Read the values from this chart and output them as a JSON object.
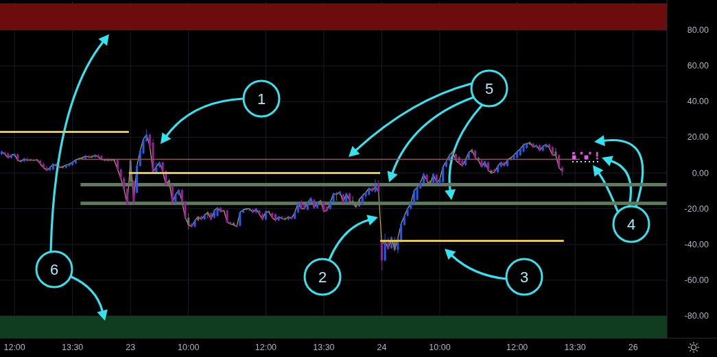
{
  "chart_data": {
    "type": "candlestick",
    "categories": [
      null,
      null,
      null,
      null,
      "12:00",
      null,
      null,
      null,
      null,
      null,
      null,
      null,
      null,
      null,
      null,
      null,
      null,
      null,
      null,
      null,
      null,
      null,
      "13:30",
      null,
      null,
      null,
      null,
      null,
      null,
      null,
      null,
      null,
      null,
      null,
      null,
      null,
      null,
      null,
      null,
      null,
      "23",
      null,
      null,
      null,
      null,
      null,
      null,
      null,
      null,
      null,
      null,
      null,
      null,
      null,
      null,
      null,
      null,
      null,
      "10:00",
      null,
      null,
      null,
      null,
      null,
      null,
      null,
      null,
      null,
      null,
      null,
      null,
      null,
      null,
      null,
      null,
      null,
      null,
      null,
      null,
      null,
      null,
      null,
      "12:00",
      null,
      null,
      null,
      null,
      null,
      null,
      null,
      null,
      null,
      null,
      null,
      null,
      null,
      null,
      null,
      null,
      null,
      "13:30",
      null,
      null,
      null,
      null,
      null,
      null,
      null,
      null,
      null,
      null,
      null,
      null,
      null,
      null,
      null,
      null,
      null,
      "24",
      null,
      null,
      null,
      null,
      null,
      null,
      null,
      null,
      null,
      null,
      null,
      null,
      null,
      null,
      null,
      null,
      null,
      "10:00",
      null,
      null,
      null,
      null,
      null,
      null,
      null,
      null,
      null,
      null,
      null,
      null,
      null,
      null,
      null,
      null,
      null,
      null,
      null,
      null,
      null,
      null,
      null,
      "12:00",
      null,
      null,
      null,
      null,
      null,
      null,
      null,
      null,
      null,
      null,
      null,
      null,
      null,
      null,
      null,
      null,
      null,
      "13:30",
      null,
      null,
      null,
      null,
      null,
      null,
      null,
      null,
      null,
      null,
      null,
      null,
      null,
      null,
      null,
      null,
      null,
      "26",
      null,
      null,
      null,
      null,
      null,
      null,
      null,
      null,
      null,
      null
    ],
    "ohlc": [
      [
        10.5,
        12.5,
        10,
        12
      ],
      [
        11.5,
        12,
        10,
        10.5
      ],
      [
        11,
        11.5,
        8,
        8.5
      ],
      [
        8.5,
        10.5,
        8,
        10
      ],
      [
        9.5,
        11,
        9,
        10.5
      ],
      [
        10.5,
        11,
        6.5,
        7
      ],
      [
        7,
        7.5,
        6,
        6.5
      ],
      [
        6.5,
        8.5,
        6,
        8
      ],
      [
        8,
        8.5,
        6.5,
        7
      ],
      [
        7,
        8,
        6.5,
        7.5
      ],
      [
        7.5,
        8,
        6.5,
        7
      ],
      [
        7,
        8,
        6.5,
        7.5
      ],
      [
        7,
        7.5,
        4.5,
        5
      ],
      [
        5,
        6,
        2.5,
        3
      ],
      [
        3,
        4,
        1,
        1.5
      ],
      [
        1.5,
        3.5,
        1,
        3
      ],
      [
        2,
        5.5,
        1.5,
        5
      ],
      [
        5,
        5.5,
        3.5,
        4
      ],
      [
        4,
        4.5,
        2.5,
        3
      ],
      [
        3,
        4,
        2.5,
        3.5
      ],
      [
        3,
        5,
        2.5,
        4.5
      ],
      [
        4,
        5.5,
        3.5,
        5
      ],
      [
        4.5,
        6.5,
        4,
        6
      ],
      [
        5.5,
        8,
        5,
        7.5
      ],
      [
        7.5,
        8.5,
        7,
        8
      ],
      [
        8,
        9,
        7.5,
        8.5
      ],
      [
        8,
        10,
        7.5,
        9.5
      ],
      [
        9.5,
        10,
        8.5,
        9
      ],
      [
        9,
        10,
        8.5,
        9
      ],
      [
        9,
        10.5,
        8.5,
        10
      ],
      [
        10,
        10.5,
        8.5,
        9
      ],
      [
        9.5,
        10,
        7,
        7.5
      ],
      [
        7,
        8,
        6.5,
        7.5
      ],
      [
        8,
        8.5,
        6.5,
        7
      ],
      [
        7,
        8,
        6.5,
        7.5
      ],
      [
        7.5,
        8,
        6.5,
        7
      ],
      [
        7.5,
        8,
        1.5,
        2
      ],
      [
        2,
        2.5,
        -3.5,
        -3
      ],
      [
        -3,
        -2,
        -9.5,
        -9
      ],
      [
        -9,
        -8.5,
        -18,
        -17.5
      ],
      [
        -5,
        7.5,
        -5.5,
        7
      ],
      [
        -4.5,
        -4,
        -17.5,
        -16
      ],
      [
        -11,
        4.5,
        -11.5,
        4
      ],
      [
        4,
        13,
        3.5,
        12.5
      ],
      [
        11,
        19.5,
        10.5,
        19
      ],
      [
        18,
        24.5,
        17.5,
        21.5
      ],
      [
        21.5,
        22,
        14.5,
        15
      ],
      [
        17,
        19,
        0,
        0.5
      ],
      [
        0.5,
        6,
        0,
        3.5
      ],
      [
        3.5,
        6.5,
        3,
        6
      ],
      [
        6,
        6.5,
        0.5,
        1
      ],
      [
        1,
        1.5,
        -7,
        -6.5
      ],
      [
        -6.5,
        -3.5,
        -8,
        -4
      ],
      [
        -7,
        -6.5,
        -17,
        -16.5
      ],
      [
        -16.5,
        -11.5,
        -17,
        -12
      ],
      [
        -12,
        -9,
        -12.5,
        -9.5
      ],
      [
        -9.5,
        -9,
        -16.5,
        -16
      ],
      [
        -16,
        -15.5,
        -25.5,
        -25
      ],
      [
        -25,
        -22.5,
        -31.5,
        -29
      ],
      [
        -28.5,
        -28,
        -30.5,
        -30
      ],
      [
        -30,
        -26,
        -30.5,
        -26.5
      ],
      [
        -26.5,
        -24,
        -27,
        -24.5
      ],
      [
        -24.5,
        -24,
        -26.5,
        -26
      ],
      [
        -26,
        -23,
        -26.5,
        -23.5
      ],
      [
        -23.5,
        -21.5,
        -25.5,
        -22
      ],
      [
        -22.5,
        -22,
        -26.5,
        -26
      ],
      [
        -25,
        -20.5,
        -25.5,
        -21
      ],
      [
        -24,
        -19,
        -24.5,
        -19.5
      ],
      [
        -19.5,
        -19,
        -22,
        -21.5
      ],
      [
        -21.5,
        -20.5,
        -22,
        -21
      ],
      [
        -21,
        -20.5,
        -28,
        -27.5
      ],
      [
        -27.5,
        -27,
        -29,
        -28.5
      ],
      [
        -28,
        -27.5,
        -29.5,
        -29
      ],
      [
        -29,
        -28.5,
        -30.5,
        -30
      ],
      [
        -29.5,
        -21.5,
        -30,
        -22
      ],
      [
        -22,
        -20,
        -22.5,
        -20.5
      ],
      [
        -20.5,
        -19.5,
        -21,
        -20
      ],
      [
        -21,
        -19.5,
        -21.5,
        -20
      ],
      [
        -20.5,
        -20,
        -22.5,
        -22
      ],
      [
        -22,
        -19.5,
        -23,
        -20
      ],
      [
        -21,
        -20.5,
        -23.5,
        -23
      ],
      [
        -23,
        -22.5,
        -26.5,
        -26
      ],
      [
        -26,
        -21,
        -26.5,
        -21.5
      ],
      [
        -21.5,
        -21,
        -22.5,
        -22
      ],
      [
        -22.5,
        -22,
        -25.5,
        -25
      ],
      [
        -23,
        -22.5,
        -27,
        -26.5
      ],
      [
        -26.5,
        -24,
        -27,
        -24.5
      ],
      [
        -24.5,
        -24,
        -26,
        -25.5
      ],
      [
        -25.5,
        -24.5,
        -26.5,
        -26
      ],
      [
        -26,
        -24,
        -26.5,
        -24.5
      ],
      [
        -24.5,
        -24,
        -26,
        -25.5
      ],
      [
        -25.5,
        -21.5,
        -26,
        -22
      ],
      [
        -22,
        -16.5,
        -22.5,
        -17
      ],
      [
        -16,
        -15,
        -20.5,
        -20
      ],
      [
        -18,
        -17.5,
        -20.5,
        -20
      ],
      [
        -20.5,
        -16,
        -21,
        -16.5
      ],
      [
        -16.5,
        -13.5,
        -17,
        -14
      ],
      [
        -15,
        -14.5,
        -20,
        -19.5
      ],
      [
        -19.5,
        -16,
        -20,
        -16.5
      ],
      [
        -16.5,
        -15,
        -17,
        -15.5
      ],
      [
        -16,
        -15.5,
        -22,
        -21.5
      ],
      [
        -19,
        -18.5,
        -21.5,
        -21
      ],
      [
        -20,
        -16,
        -20.5,
        -16.5
      ],
      [
        -16.5,
        -11,
        -17,
        -11.5
      ],
      [
        -11.5,
        -10.5,
        -15.5,
        -12
      ],
      [
        -12,
        -10,
        -12.5,
        -10.5
      ],
      [
        -12,
        -11.5,
        -17,
        -16.5
      ],
      [
        -16.5,
        -11,
        -17,
        -11.5
      ],
      [
        -11.5,
        -11,
        -16,
        -15.5
      ],
      [
        -15.5,
        -13,
        -18,
        -17
      ],
      [
        -17,
        -16.5,
        -19.5,
        -19
      ],
      [
        -18.5,
        -14.5,
        -19,
        -15
      ],
      [
        -17.5,
        -12,
        -18,
        -12.5
      ],
      [
        -13,
        -10.5,
        -14.5,
        -11
      ],
      [
        -12,
        -8,
        -12.5,
        -8.5
      ],
      [
        -8.5,
        -8,
        -10.5,
        -10
      ],
      [
        -10.5,
        -3.5,
        -11,
        -7.5
      ],
      [
        -5.5,
        -4,
        -11,
        -10.5
      ],
      [
        -38,
        -38,
        -54.5,
        -49
      ],
      [
        -49,
        -34,
        -49.5,
        -38
      ],
      [
        -38,
        -36,
        -43,
        -42.5
      ],
      [
        -42,
        -35.5,
        -42.5,
        -36
      ],
      [
        -38,
        -36,
        -44,
        -43
      ],
      [
        -43,
        -36,
        -45,
        -36.5
      ],
      [
        -38.5,
        -28,
        -39,
        -28.5
      ],
      [
        -29,
        -23.5,
        -29.5,
        -24
      ],
      [
        -24,
        -19.5,
        -24.5,
        -20
      ],
      [
        -20,
        -16.5,
        -20.5,
        -17
      ],
      [
        -17,
        -9.5,
        -17.5,
        -10
      ],
      [
        -15,
        -7.5,
        -15.5,
        -8
      ],
      [
        -8.5,
        -4,
        -9,
        -5.5
      ],
      [
        -5.5,
        0,
        -6,
        -0.5
      ],
      [
        -1,
        -0.5,
        -5,
        -4.5
      ],
      [
        -4.5,
        -4,
        -7,
        -6.5
      ],
      [
        -5.5,
        0,
        -6,
        -0.5
      ],
      [
        -1,
        -0.5,
        -6,
        -5.5
      ],
      [
        -6,
        -3,
        -6.5,
        -3.5
      ],
      [
        -5,
        4,
        -5.5,
        3.5
      ],
      [
        3.5,
        7,
        3,
        6.5
      ],
      [
        7,
        10.5,
        6.5,
        10
      ],
      [
        10,
        12.5,
        8.5,
        12
      ],
      [
        10.5,
        11,
        6.5,
        7
      ],
      [
        9,
        9.5,
        5,
        5.5
      ],
      [
        7,
        7.5,
        3.5,
        4
      ],
      [
        4.5,
        8,
        4,
        7.5
      ],
      [
        8,
        12,
        7.5,
        11.5
      ],
      [
        11.5,
        13.5,
        11,
        13
      ],
      [
        12.5,
        13,
        8,
        8.5
      ],
      [
        8.5,
        9,
        6.5,
        7
      ],
      [
        7,
        7.5,
        3,
        3.5
      ],
      [
        3.5,
        7,
        3,
        6.5
      ],
      [
        6,
        6.5,
        1,
        1.5
      ],
      [
        1.5,
        2,
        -0.5,
        0
      ],
      [
        2,
        2.5,
        0,
        0.5
      ],
      [
        0.5,
        4.5,
        0,
        4
      ],
      [
        3.5,
        6.5,
        3,
        6
      ],
      [
        6,
        6.5,
        3.5,
        4
      ],
      [
        4,
        8,
        3.5,
        7.5
      ],
      [
        7.5,
        9,
        7,
        8.5
      ],
      [
        8,
        10.5,
        7.5,
        10
      ],
      [
        8.5,
        12.5,
        8,
        12
      ],
      [
        10,
        14,
        9.5,
        13.5
      ],
      [
        12,
        16.5,
        11.5,
        16
      ],
      [
        14,
        17,
        13.5,
        16.5
      ],
      [
        16,
        17.5,
        15.5,
        17
      ],
      [
        16.5,
        17,
        14,
        14.5
      ],
      [
        14.5,
        16,
        14,
        15.5
      ],
      [
        15.5,
        16,
        12,
        12.5
      ],
      [
        12.5,
        15.5,
        12,
        15
      ],
      [
        14.5,
        16.5,
        14,
        16
      ],
      [
        16,
        16.5,
        13.5,
        14
      ],
      [
        14.5,
        15,
        9.5,
        10
      ],
      [
        12,
        14,
        9.5,
        10
      ],
      [
        10,
        10.5,
        2.5,
        3
      ],
      [
        3,
        3.5,
        -1.5,
        1
      ],
      null,
      null,
      null,
      null,
      null,
      null,
      null,
      null,
      null,
      null,
      null,
      null,
      null,
      null,
      null,
      null,
      null,
      null,
      null,
      null,
      null,
      null,
      null,
      null,
      null,
      null,
      null,
      null,
      null,
      null,
      null,
      null
    ],
    "colors": [
      "#2159f5",
      "#9a1fa6",
      "#9a1fa6",
      "#2159f5",
      "#2159f5",
      "#9a1fa6",
      "#6f717a",
      "#2159f5",
      "#9a1fa6",
      "#6f717a",
      "#9a1fa6",
      "#6f717a",
      "#9a1fa6",
      "#9a1fa6",
      "#9a1fa6",
      "#2159f5",
      "#2159f5",
      "#6f717a",
      "#9a1fa6",
      "#6f717a",
      "#2159f5",
      "#2159f5",
      "#2159f5",
      "#2159f5",
      "#6f717a",
      "#6f717a",
      "#2159f5",
      "#9a1fa6",
      "#6f717a",
      "#2159f5",
      "#9a1fa6",
      "#9a1fa6",
      "#6f717a",
      "#9a1fa6",
      "#6f717a",
      "#6f717a",
      "#9a1fa6",
      "#9a1fa6",
      "#9a1fa6",
      "#9a1fa6",
      "#6f717a",
      "#9a1fa6",
      "#2159f5",
      "#2159f5",
      "#2159f5",
      "#2159f5",
      "#9a1fa6",
      "#9a1fa6",
      "#2159f5",
      "#2159f5",
      "#9a1fa6",
      "#9a1fa6",
      "#6f717a",
      "#9a1fa6",
      "#2159f5",
      "#2159f5",
      "#9a1fa6",
      "#9a1fa6",
      "#6f717a",
      "#9a1fa6",
      "#2159f5",
      "#6f717a",
      "#9a1fa6",
      "#2159f5",
      "#6f717a",
      "#9a1fa6",
      "#2159f5",
      "#2159f5",
      "#9a1fa6",
      "#6f717a",
      "#9a1fa6",
      "#9a1fa6",
      "#6f717a",
      "#9a1fa6",
      "#2159f5",
      "#2159f5",
      "#6f717a",
      "#2159f5",
      "#9a1fa6",
      "#2159f5",
      "#9a1fa6",
      "#9a1fa6",
      "#2159f5",
      "#6f717a",
      "#9a1fa6",
      "#9a1fa6",
      "#2159f5",
      "#9a1fa6",
      "#6f717a",
      "#2159f5",
      "#9a1fa6",
      "#2159f5",
      "#2159f5",
      "#9a1fa6",
      "#9a1fa6",
      "#2159f5",
      "#2159f5",
      "#9a1fa6",
      "#2159f5",
      "#6f717a",
      "#9a1fa6",
      "#9a1fa6",
      "#2159f5",
      "#2159f5",
      "#6f717a",
      "#2159f5",
      "#9a1fa6",
      "#2159f5",
      "#9a1fa6",
      "#6f717a",
      "#6f717a",
      "#6f717a",
      "#2159f5",
      "#2159f5",
      "#2159f5",
      "#9a1fa6",
      "#2159f5",
      "#9a1fa6",
      "#9a1fa6",
      "#2159f5",
      "#9a1fa6",
      "#2159f5",
      "#6f717a",
      "#2159f5",
      "#2159f5",
      "#2159f5",
      "#2159f5",
      "#2159f5",
      "#2159f5",
      "#2159f5",
      "#2159f5",
      "#2159f5",
      "#9a1fa6",
      "#6f717a",
      "#2159f5",
      "#9a1fa6",
      "#2159f5",
      "#2159f5",
      "#2159f5",
      "#2159f5",
      "#6f717a",
      "#9a1fa6",
      "#9a1fa6",
      "#9a1fa6",
      "#2159f5",
      "#2159f5",
      "#6f717a",
      "#9a1fa6",
      "#6f717a",
      "#9a1fa6",
      "#2159f5",
      "#9a1fa6",
      "#6f717a",
      "#9a1fa6",
      "#2159f5",
      "#2159f5",
      "#9a1fa6",
      "#2159f5",
      "#6f717a",
      "#2159f5",
      "#2159f5",
      "#2159f5",
      "#2159f5",
      "#2159f5",
      "#6f717a",
      "#9a1fa6",
      "#2159f5",
      "#9a1fa6",
      "#2159f5",
      "#2159f5",
      "#9a1fa6",
      "#9a1fa6",
      "#6f717a",
      "#9a1fa6",
      "#9a1fa6",
      null,
      null,
      null,
      null,
      null,
      null,
      null,
      null,
      null,
      null,
      null,
      null,
      null,
      null,
      null,
      null,
      null,
      null,
      null,
      null,
      null,
      null,
      null,
      null,
      null,
      null,
      null,
      null,
      null,
      null,
      null,
      null
    ],
    "series": [
      {
        "type": "line",
        "color": "#c9ae3a",
        "values": [
          12,
          10.5,
          8.5,
          10,
          10.5,
          7,
          6.5,
          8,
          7,
          7.5,
          7,
          7.5,
          5,
          3,
          1.5,
          3,
          5,
          4,
          3,
          3.5,
          4.5,
          5,
          6,
          7.5,
          8,
          8.5,
          9.5,
          9,
          9,
          10,
          9,
          7.5,
          7.5,
          7,
          7.5,
          7,
          2,
          -3,
          -9,
          -17.5,
          7,
          -16,
          4,
          12.5,
          19,
          21.5,
          15,
          0.5,
          3.5,
          6,
          1,
          -6.5,
          -4,
          -16.5,
          -12,
          -9.5,
          -16,
          -25,
          -29,
          -30,
          -26.5,
          -24.5,
          -26,
          -23.5,
          -22,
          -26,
          -21,
          -19.5,
          -21.5,
          -21,
          -27.5,
          -28.5,
          -29,
          -30,
          -22,
          -20.5,
          -20,
          -20,
          -22,
          -20,
          -23,
          -26,
          -21.5,
          -22,
          -25,
          -26.5,
          -24.5,
          -25.5,
          -26,
          -24.5,
          -25.5,
          -22,
          -17,
          -20,
          -20,
          -16.5,
          -14,
          -19.5,
          -16.5,
          -15.5,
          -21.5,
          -21,
          -16.5,
          -11.5,
          -12,
          -10.5,
          -16.5,
          -11.5,
          -15.5,
          -17,
          -19,
          -15,
          -12.5,
          -11,
          -8.5,
          -10,
          -7.5,
          -10.5,
          -40,
          -38,
          -42.5,
          -36,
          -43,
          -36.5,
          -28.5,
          -24,
          -20,
          -17,
          -10,
          -8,
          -5.5,
          -0.5,
          -4.5,
          -6.5,
          -0.5,
          -5.5,
          -3.5,
          3.5,
          6.5,
          10,
          12,
          7,
          5.5,
          4,
          7.5,
          11.5,
          13,
          8.5,
          7,
          3.5,
          6.5,
          1.5,
          0,
          0.5,
          4,
          6,
          4,
          7.5,
          8.5,
          10,
          12,
          13.5,
          16,
          16.5,
          17,
          14.5,
          15.5,
          12.5,
          15,
          16,
          14,
          10,
          10,
          3,
          1,
          null,
          null,
          null,
          null,
          null,
          null,
          null,
          null,
          null,
          null,
          null,
          null,
          null,
          null,
          null,
          null,
          null,
          null,
          null,
          null,
          null,
          null,
          null,
          null,
          null,
          null,
          null,
          null,
          null,
          null,
          null,
          null
        ]
      },
      {
        "type": "step",
        "color": "#e3c84a",
        "values": [
          23,
          23,
          23,
          23,
          23,
          23,
          23,
          23,
          23,
          23,
          23,
          23,
          23,
          23,
          23,
          23,
          23,
          23,
          23,
          23,
          23,
          23,
          23,
          23,
          23,
          23,
          23,
          23,
          23,
          23,
          23,
          23,
          23,
          23,
          23,
          23,
          23,
          23,
          23,
          23,
          0,
          0,
          0,
          0,
          0,
          0,
          0,
          0,
          0,
          0,
          0,
          0,
          0,
          0,
          0,
          0,
          0,
          0,
          0,
          0,
          0,
          0,
          0,
          0,
          0,
          0,
          0,
          0,
          0,
          0,
          0,
          0,
          0,
          0,
          0,
          0,
          0,
          0,
          0,
          0,
          0,
          0,
          0,
          0,
          0,
          0,
          0,
          0,
          0,
          0,
          0,
          0,
          0,
          0,
          0,
          0,
          0,
          0,
          0,
          0,
          0,
          0,
          0,
          0,
          0,
          0,
          0,
          0,
          0,
          0,
          0,
          0,
          0,
          0,
          0,
          0,
          0,
          0,
          -38,
          -38,
          -38,
          -38,
          -38,
          -38,
          -38,
          -38,
          -38,
          -38,
          -38,
          -38,
          -38,
          -38,
          -38,
          -38,
          -38,
          -38,
          -38,
          -38,
          -38,
          -38,
          -38,
          -38,
          -38,
          -38,
          -38,
          -38,
          -38,
          -38,
          -38,
          -38,
          -38,
          -38,
          -38,
          -38,
          -38,
          -38,
          -38,
          -38,
          -38,
          -38,
          -38,
          -38,
          -38,
          -38,
          -38,
          -38,
          -38,
          -38,
          -38,
          -38,
          -38,
          -38,
          -38,
          -38,
          -38,
          null,
          null,
          null,
          null,
          null,
          null,
          null,
          null,
          null,
          null,
          null,
          null,
          null,
          null,
          null,
          null,
          null,
          null,
          null,
          null,
          null,
          null,
          null,
          null,
          null,
          null,
          null,
          null,
          null,
          null,
          null,
          null
        ]
      },
      {
        "type": "step",
        "color": "#8f5a62",
        "values": [
          null,
          null,
          null,
          null,
          null,
          null,
          null,
          null,
          null,
          null,
          null,
          null,
          null,
          null,
          null,
          null,
          null,
          null,
          null,
          null,
          null,
          null,
          null,
          null,
          null,
          7.7,
          7.7,
          7.7,
          7.7,
          7.7,
          7.7,
          7.7,
          7.7,
          7.7,
          7.7,
          7.7,
          7.7,
          7.7,
          7.7,
          7.7,
          7.7,
          7.7,
          7.7,
          7.7,
          7.7,
          7.7,
          7.7,
          7.7,
          7.7,
          7.7,
          7.7,
          7.7,
          7.7,
          7.7,
          7.7,
          7.7,
          7.7,
          7.7,
          7.7,
          7.7,
          7.7,
          7.7,
          7.7,
          7.7,
          7.7,
          7.7,
          7.7,
          7.7,
          7.7,
          7.7,
          7.7,
          7.7,
          7.7,
          7.7,
          7.7,
          7.7,
          7.7,
          7.7,
          7.7,
          7.7,
          7.7,
          7.7,
          7.7,
          7.7,
          7.7,
          7.7,
          7.7,
          7.7,
          7.7,
          7.7,
          7.7,
          7.7,
          7.7,
          7.7,
          7.7,
          7.7,
          7.7,
          7.7,
          7.7,
          7.7,
          7.7,
          7.7,
          7.7,
          7.7,
          7.7,
          7.7,
          7.7,
          7.7,
          7.7,
          7.7,
          7.7,
          7.7,
          7.7,
          7.7,
          7.7,
          7.7,
          7.7,
          7.7,
          7.7,
          7.7,
          7.7,
          7.7,
          7.7,
          7.7,
          7.7,
          7.7,
          7.7,
          7.7,
          7.7,
          7.7,
          7.7,
          7.7,
          7.7,
          7.7,
          7.7,
          7.7,
          7.7,
          7.7,
          7.7,
          7.7,
          7.7,
          7.7,
          7.7,
          7.7,
          7.7,
          7.7,
          7.7,
          7.7,
          7.7,
          7.7,
          7.7,
          7.7,
          7.7,
          7.7,
          7.7,
          7.7,
          7.7,
          7.7,
          7.7,
          7.7,
          7.7,
          7.7,
          7.7,
          7.7,
          7.7,
          7.7,
          7.7,
          7.7,
          7.7,
          7.7,
          7.7,
          7.7,
          7.7,
          7.7,
          7.7,
          7.7,
          7.7,
          7.7,
          7.7,
          7.7,
          null,
          null,
          null,
          null,
          null,
          null,
          null,
          null,
          null,
          null,
          null,
          null,
          null,
          null,
          null,
          null,
          null,
          null,
          null,
          null,
          null,
          null,
          null,
          null,
          null,
          null,
          null
        ]
      },
      {
        "type": "step",
        "color": "#607a5e",
        "values": [
          null,
          null,
          null,
          null,
          null,
          null,
          null,
          null,
          null,
          null,
          null,
          null,
          null,
          null,
          null,
          null,
          null,
          null,
          null,
          null,
          null,
          null,
          null,
          null,
          null,
          -6.5,
          -6.5,
          -6.5,
          -6.5,
          -6.5,
          -6.5,
          -6.5,
          -6.5,
          -6.5,
          -6.5,
          -6.5,
          -6.5,
          -6.5,
          -6.5,
          -6.5,
          -6.5,
          -6.5,
          -6.5,
          -6.5,
          -6.5,
          -6.5,
          -6.5,
          -6.5,
          -6.5,
          -6.5,
          -6.5,
          -6.5,
          -6.5,
          -6.5,
          -6.5,
          -6.5,
          -6.5,
          -6.5,
          -6.5,
          -6.5,
          -6.5,
          -6.5,
          -6.5,
          -6.5,
          -6.5,
          -6.5,
          -6.5,
          -6.5,
          -6.5,
          -6.5,
          -6.5,
          -6.5,
          -6.5,
          -6.5,
          -6.5,
          -6.5,
          -6.5,
          -6.5,
          -6.5,
          -6.5,
          -6.5,
          -6.5,
          -6.5,
          -6.5,
          -6.5,
          -6.5,
          -6.5,
          -6.5,
          -6.5,
          -6.5,
          -6.5,
          -6.5,
          -6.5,
          -6.5,
          -6.5,
          -6.5,
          -6.5,
          -6.5,
          -6.5,
          -6.5,
          -6.5,
          -6.5,
          -6.5,
          -6.5,
          -6.5,
          -6.5,
          -6.5,
          -6.5,
          -6.5,
          -6.5,
          -6.5,
          -6.5,
          -6.5,
          -6.5,
          -6.5,
          -6.5,
          -6.5,
          -6.5,
          -6.5,
          -6.5,
          -6.5,
          -6.5,
          -6.5,
          -6.5,
          -6.5,
          -6.5,
          -6.5,
          -6.5,
          -6.5,
          -6.5,
          -6.5,
          -6.5,
          -6.5,
          -6.5,
          -6.5,
          -6.5,
          -6.5,
          -6.5,
          -6.5,
          -6.5,
          -6.5,
          -6.5,
          -6.5,
          -6.5,
          -6.5,
          -6.5,
          -6.5,
          -6.5,
          -6.5,
          -6.5,
          -6.5,
          -6.5,
          -6.5,
          -6.5,
          -6.5,
          -6.5,
          -6.5,
          -6.5,
          -6.5,
          -6.5,
          -6.5,
          -6.5,
          -6.5,
          -6.5,
          -6.5,
          -6.5,
          -6.5,
          -6.5,
          -6.5,
          -6.5,
          -6.5,
          -6.5,
          -6.5,
          -6.5,
          -6.5,
          -6.5,
          -6.5,
          -6.5,
          -6.5,
          -6.5,
          -6.5,
          -6.5,
          -6.5,
          -6.5,
          -6.5,
          -6.5,
          -6.5,
          -6.5,
          -6.5,
          -6.5,
          -6.5,
          -6.5,
          -6.5,
          -6.5,
          -6.5,
          -6.5,
          -6.5,
          -6.5,
          -6.5,
          -6.5,
          -6.5,
          -6.5,
          -6.5,
          -6.5,
          -6.5,
          -6.5,
          -6.5
        ]
      },
      {
        "type": "step",
        "color": "#607a5e",
        "values": [
          null,
          null,
          null,
          null,
          null,
          null,
          null,
          null,
          null,
          null,
          null,
          null,
          null,
          null,
          null,
          null,
          null,
          null,
          null,
          null,
          null,
          null,
          null,
          null,
          null,
          -17,
          -17,
          -17,
          -17,
          -17,
          -17,
          -17,
          -17,
          -17,
          -17,
          -17,
          -17,
          -17,
          -17,
          -17,
          -17,
          -17,
          -17,
          -17,
          -17,
          -17,
          -17,
          -17,
          -17,
          -17,
          -17,
          -17,
          -17,
          -17,
          -17,
          -17,
          -17,
          -17,
          -17,
          -17,
          -17,
          -17,
          -17,
          -17,
          -17,
          -17,
          -17,
          -17,
          -17,
          -17,
          -17,
          -17,
          -17,
          -17,
          -17,
          -17,
          -17,
          -17,
          -17,
          -17,
          -17,
          -17,
          -17,
          -17,
          -17,
          -17,
          -17,
          -17,
          -17,
          -17,
          -17,
          -17,
          -17,
          -17,
          -17,
          -17,
          -17,
          -17,
          -17,
          -17,
          -17,
          -17,
          -17,
          -17,
          -17,
          -17,
          -17,
          -17,
          -17,
          -17,
          -17,
          -17,
          -17,
          -17,
          -17,
          -17,
          -17,
          -17,
          -17,
          -17,
          -17,
          -17,
          -17,
          -17,
          -17,
          -17,
          -17,
          -17,
          -17,
          -17,
          -17,
          -17,
          -17,
          -17,
          -17,
          -17,
          -17,
          -17,
          -17,
          -17,
          -17,
          -17,
          -17,
          -17,
          -17,
          -17,
          -17,
          -17,
          -17,
          -17,
          -17,
          -17,
          -17,
          -17,
          -17,
          -17,
          -17,
          -17,
          -17,
          -17,
          -17,
          -17,
          -17,
          -17,
          -17,
          -17,
          -17,
          -17,
          -17,
          -17,
          -17,
          -17,
          -17,
          -17,
          -17,
          -17,
          -17,
          -17,
          -17,
          -17,
          -17,
          -17,
          -17,
          -17,
          -17,
          -17,
          -17,
          -17,
          -17,
          -17,
          -17,
          -17,
          -17,
          -17,
          -17,
          -17,
          -17,
          -17,
          -17,
          -17,
          -17,
          -17,
          -17,
          -17,
          -17,
          -17,
          -17
        ]
      }
    ],
    "ylim": [
      -92.5,
      96
    ],
    "yticks": [
      {
        "value": 80,
        "label": "80.00"
      },
      {
        "value": 60,
        "label": "60.00"
      },
      {
        "value": 40,
        "label": "40.00"
      },
      {
        "value": 20,
        "label": "20.00"
      },
      {
        "value": 0,
        "label": "0.00"
      },
      {
        "value": -20,
        "label": "-20.00"
      },
      {
        "value": -40,
        "label": "-40.00"
      },
      {
        "value": -60,
        "label": "-60.00"
      },
      {
        "value": -80,
        "label": "-80.00"
      }
    ],
    "bands": [
      {
        "axis": "y",
        "from": 80,
        "to": 95,
        "color": "#6d0c0c"
      },
      {
        "axis": "y",
        "from": -92.5,
        "to": -80,
        "color": "#103c20"
      }
    ],
    "grid": true,
    "annotations": [
      "1",
      "2",
      "3",
      "4",
      "5",
      "6"
    ]
  }
}
